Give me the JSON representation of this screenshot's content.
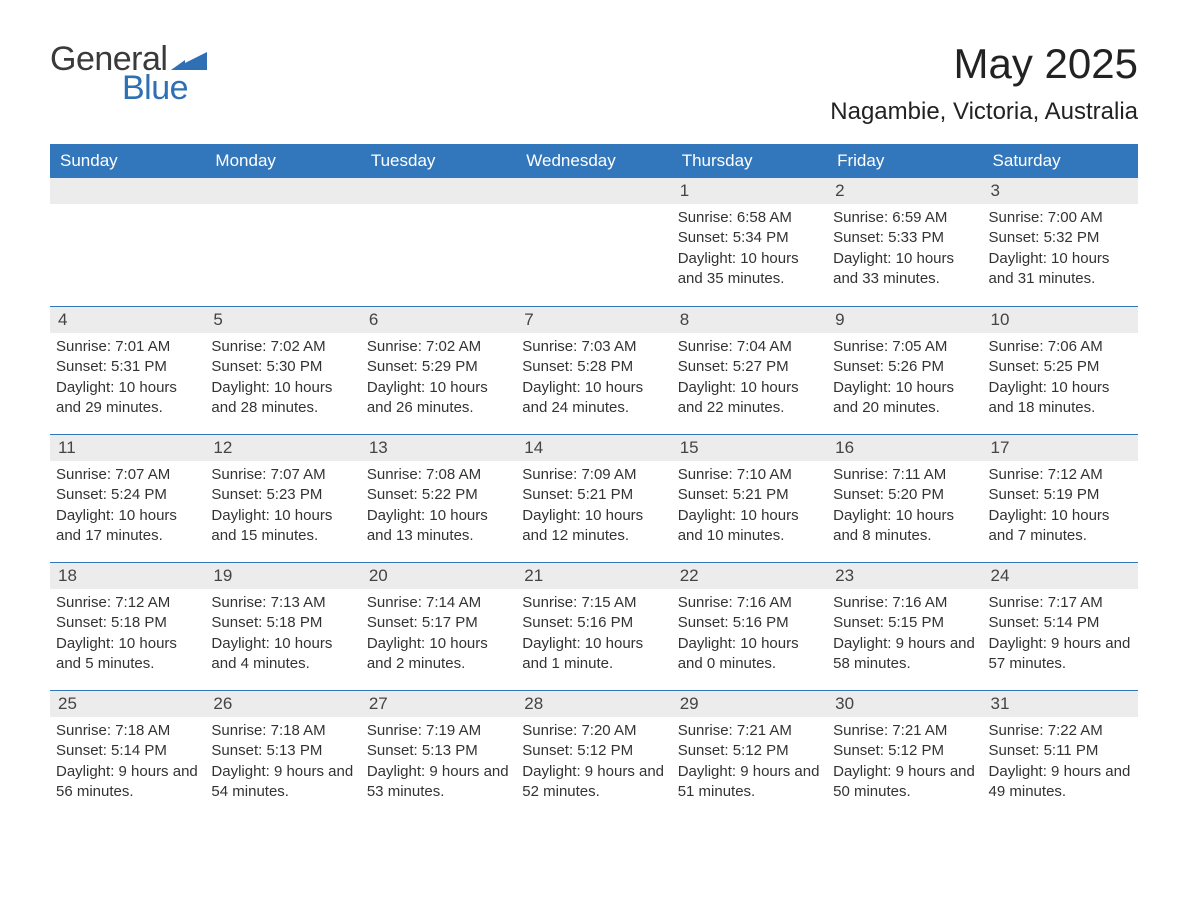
{
  "logo": {
    "text_general": "General",
    "text_blue": "Blue",
    "icon_color": "#2f6fb3"
  },
  "title": {
    "month": "May 2025",
    "location": "Nagambie, Victoria, Australia"
  },
  "colors": {
    "header_bg": "#3277bc",
    "header_text": "#ffffff",
    "daynum_bg": "#ececec",
    "body_text": "#333333",
    "divider": "#3277bc"
  },
  "fonts": {
    "title_size_pt": 32,
    "location_size_pt": 18,
    "header_size_pt": 13,
    "body_size_pt": 11
  },
  "day_headers": [
    "Sunday",
    "Monday",
    "Tuesday",
    "Wednesday",
    "Thursday",
    "Friday",
    "Saturday"
  ],
  "weeks": [
    [
      {
        "num": "",
        "sunrise": "",
        "sunset": "",
        "daylight": ""
      },
      {
        "num": "",
        "sunrise": "",
        "sunset": "",
        "daylight": ""
      },
      {
        "num": "",
        "sunrise": "",
        "sunset": "",
        "daylight": ""
      },
      {
        "num": "",
        "sunrise": "",
        "sunset": "",
        "daylight": ""
      },
      {
        "num": "1",
        "sunrise": "Sunrise: 6:58 AM",
        "sunset": "Sunset: 5:34 PM",
        "daylight": "Daylight: 10 hours and 35 minutes."
      },
      {
        "num": "2",
        "sunrise": "Sunrise: 6:59 AM",
        "sunset": "Sunset: 5:33 PM",
        "daylight": "Daylight: 10 hours and 33 minutes."
      },
      {
        "num": "3",
        "sunrise": "Sunrise: 7:00 AM",
        "sunset": "Sunset: 5:32 PM",
        "daylight": "Daylight: 10 hours and 31 minutes."
      }
    ],
    [
      {
        "num": "4",
        "sunrise": "Sunrise: 7:01 AM",
        "sunset": "Sunset: 5:31 PM",
        "daylight": "Daylight: 10 hours and 29 minutes."
      },
      {
        "num": "5",
        "sunrise": "Sunrise: 7:02 AM",
        "sunset": "Sunset: 5:30 PM",
        "daylight": "Daylight: 10 hours and 28 minutes."
      },
      {
        "num": "6",
        "sunrise": "Sunrise: 7:02 AM",
        "sunset": "Sunset: 5:29 PM",
        "daylight": "Daylight: 10 hours and 26 minutes."
      },
      {
        "num": "7",
        "sunrise": "Sunrise: 7:03 AM",
        "sunset": "Sunset: 5:28 PM",
        "daylight": "Daylight: 10 hours and 24 minutes."
      },
      {
        "num": "8",
        "sunrise": "Sunrise: 7:04 AM",
        "sunset": "Sunset: 5:27 PM",
        "daylight": "Daylight: 10 hours and 22 minutes."
      },
      {
        "num": "9",
        "sunrise": "Sunrise: 7:05 AM",
        "sunset": "Sunset: 5:26 PM",
        "daylight": "Daylight: 10 hours and 20 minutes."
      },
      {
        "num": "10",
        "sunrise": "Sunrise: 7:06 AM",
        "sunset": "Sunset: 5:25 PM",
        "daylight": "Daylight: 10 hours and 18 minutes."
      }
    ],
    [
      {
        "num": "11",
        "sunrise": "Sunrise: 7:07 AM",
        "sunset": "Sunset: 5:24 PM",
        "daylight": "Daylight: 10 hours and 17 minutes."
      },
      {
        "num": "12",
        "sunrise": "Sunrise: 7:07 AM",
        "sunset": "Sunset: 5:23 PM",
        "daylight": "Daylight: 10 hours and 15 minutes."
      },
      {
        "num": "13",
        "sunrise": "Sunrise: 7:08 AM",
        "sunset": "Sunset: 5:22 PM",
        "daylight": "Daylight: 10 hours and 13 minutes."
      },
      {
        "num": "14",
        "sunrise": "Sunrise: 7:09 AM",
        "sunset": "Sunset: 5:21 PM",
        "daylight": "Daylight: 10 hours and 12 minutes."
      },
      {
        "num": "15",
        "sunrise": "Sunrise: 7:10 AM",
        "sunset": "Sunset: 5:21 PM",
        "daylight": "Daylight: 10 hours and 10 minutes."
      },
      {
        "num": "16",
        "sunrise": "Sunrise: 7:11 AM",
        "sunset": "Sunset: 5:20 PM",
        "daylight": "Daylight: 10 hours and 8 minutes."
      },
      {
        "num": "17",
        "sunrise": "Sunrise: 7:12 AM",
        "sunset": "Sunset: 5:19 PM",
        "daylight": "Daylight: 10 hours and 7 minutes."
      }
    ],
    [
      {
        "num": "18",
        "sunrise": "Sunrise: 7:12 AM",
        "sunset": "Sunset: 5:18 PM",
        "daylight": "Daylight: 10 hours and 5 minutes."
      },
      {
        "num": "19",
        "sunrise": "Sunrise: 7:13 AM",
        "sunset": "Sunset: 5:18 PM",
        "daylight": "Daylight: 10 hours and 4 minutes."
      },
      {
        "num": "20",
        "sunrise": "Sunrise: 7:14 AM",
        "sunset": "Sunset: 5:17 PM",
        "daylight": "Daylight: 10 hours and 2 minutes."
      },
      {
        "num": "21",
        "sunrise": "Sunrise: 7:15 AM",
        "sunset": "Sunset: 5:16 PM",
        "daylight": "Daylight: 10 hours and 1 minute."
      },
      {
        "num": "22",
        "sunrise": "Sunrise: 7:16 AM",
        "sunset": "Sunset: 5:16 PM",
        "daylight": "Daylight: 10 hours and 0 minutes."
      },
      {
        "num": "23",
        "sunrise": "Sunrise: 7:16 AM",
        "sunset": "Sunset: 5:15 PM",
        "daylight": "Daylight: 9 hours and 58 minutes."
      },
      {
        "num": "24",
        "sunrise": "Sunrise: 7:17 AM",
        "sunset": "Sunset: 5:14 PM",
        "daylight": "Daylight: 9 hours and 57 minutes."
      }
    ],
    [
      {
        "num": "25",
        "sunrise": "Sunrise: 7:18 AM",
        "sunset": "Sunset: 5:14 PM",
        "daylight": "Daylight: 9 hours and 56 minutes."
      },
      {
        "num": "26",
        "sunrise": "Sunrise: 7:18 AM",
        "sunset": "Sunset: 5:13 PM",
        "daylight": "Daylight: 9 hours and 54 minutes."
      },
      {
        "num": "27",
        "sunrise": "Sunrise: 7:19 AM",
        "sunset": "Sunset: 5:13 PM",
        "daylight": "Daylight: 9 hours and 53 minutes."
      },
      {
        "num": "28",
        "sunrise": "Sunrise: 7:20 AM",
        "sunset": "Sunset: 5:12 PM",
        "daylight": "Daylight: 9 hours and 52 minutes."
      },
      {
        "num": "29",
        "sunrise": "Sunrise: 7:21 AM",
        "sunset": "Sunset: 5:12 PM",
        "daylight": "Daylight: 9 hours and 51 minutes."
      },
      {
        "num": "30",
        "sunrise": "Sunrise: 7:21 AM",
        "sunset": "Sunset: 5:12 PM",
        "daylight": "Daylight: 9 hours and 50 minutes."
      },
      {
        "num": "31",
        "sunrise": "Sunrise: 7:22 AM",
        "sunset": "Sunset: 5:11 PM",
        "daylight": "Daylight: 9 hours and 49 minutes."
      }
    ]
  ]
}
